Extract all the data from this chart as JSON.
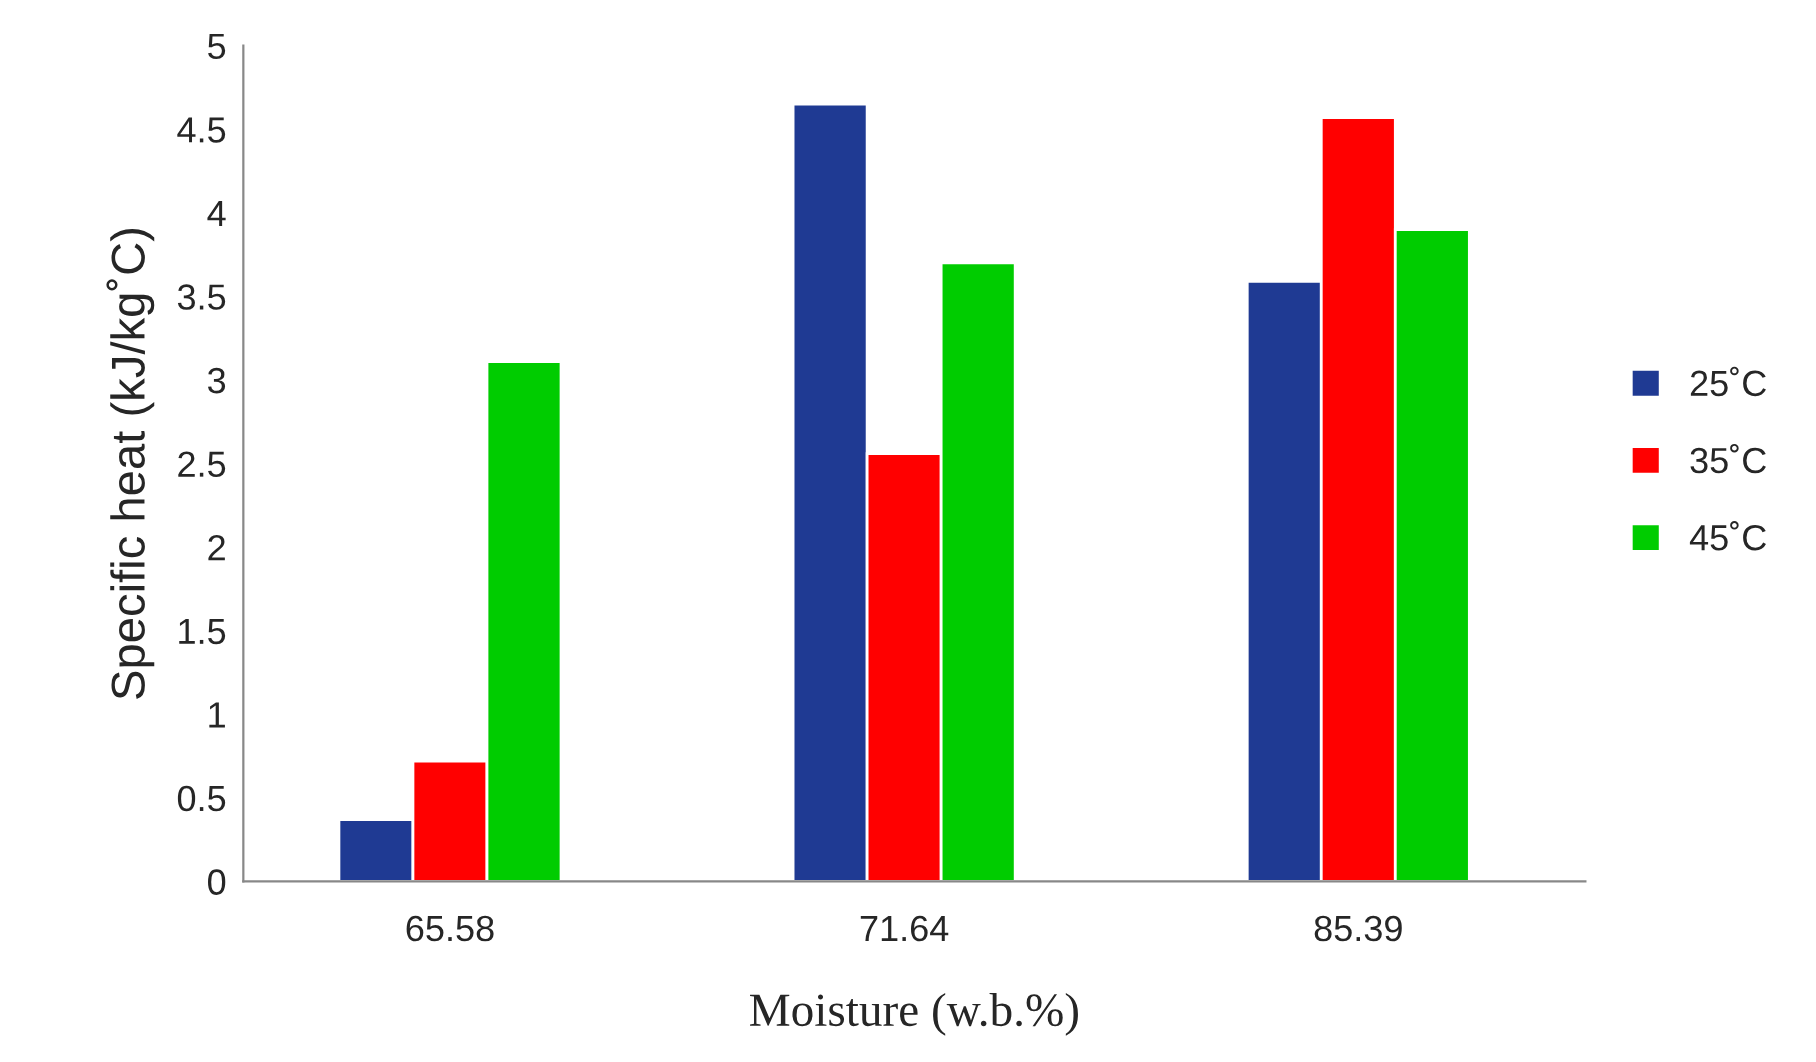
{
  "chart_data": {
    "type": "bar",
    "xlabel": "Moisture (w.b.%)",
    "ylabel": "Specific heat (kJ/kg˚C)",
    "categories": [
      "65.58",
      "71.64",
      "85.39"
    ],
    "series": [
      {
        "name": "25˚C",
        "color": "#1f3a93",
        "values": [
          0.37,
          4.65,
          3.59
        ]
      },
      {
        "name": "35˚C",
        "color": "#ff0000",
        "values": [
          0.72,
          2.56,
          4.57
        ]
      },
      {
        "name": "45˚C",
        "color": "#00cc00",
        "values": [
          3.11,
          3.7,
          3.9
        ]
      }
    ],
    "ylim": [
      0,
      5
    ],
    "yticks": [
      0,
      0.5,
      1,
      1.5,
      2,
      2.5,
      3,
      3.5,
      4,
      4.5,
      5
    ],
    "grid": false,
    "legend": "right"
  }
}
